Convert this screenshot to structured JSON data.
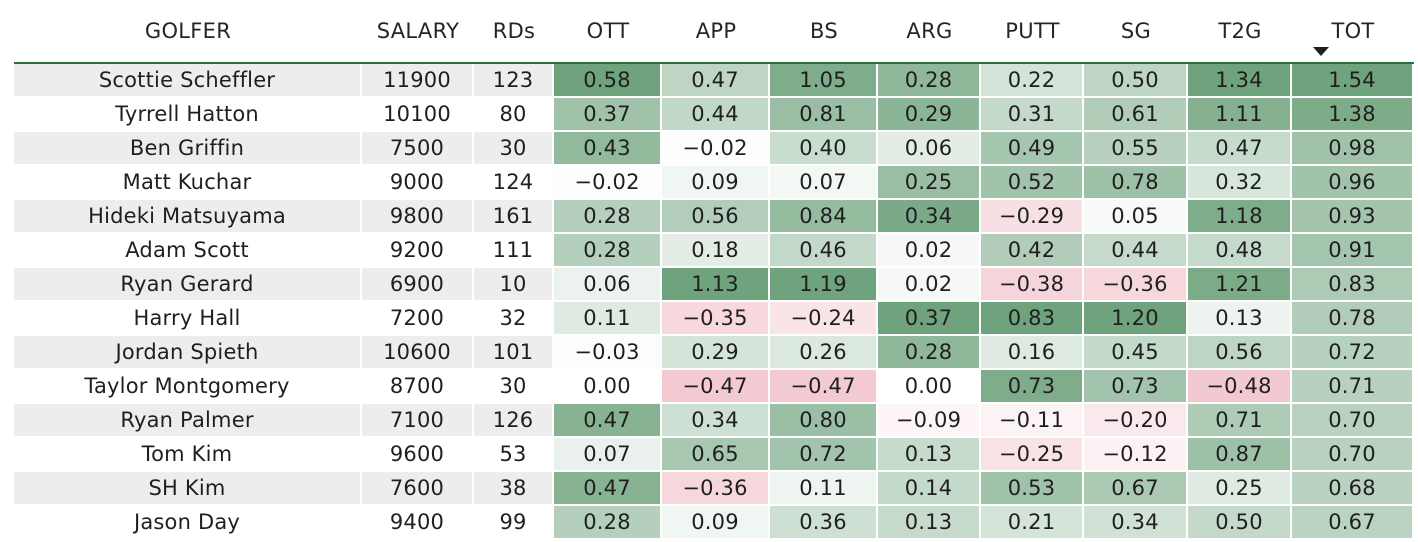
{
  "columns": [
    "GOLFER",
    "SALARY",
    "RDs",
    "OTT",
    "APP",
    "BS",
    "ARG",
    "PUTT",
    "SG",
    "T2G",
    "TOT"
  ],
  "sorted_column": "TOT",
  "sort_icon": "sort-descending-icon",
  "colors": {
    "positive": "#6fa37d",
    "negative": "#f2c7cf",
    "neutral": "#ffffff",
    "header_rule": "#2e6b3f"
  },
  "rows": [
    {
      "golfer": "Scottie Scheffler",
      "salary": "11900",
      "rds": "123",
      "ott": "0.58",
      "app": "0.47",
      "bs": "1.05",
      "arg": "0.28",
      "putt": "0.22",
      "sg": "0.50",
      "t2g": "1.34",
      "tot": "1.54"
    },
    {
      "golfer": "Tyrrell Hatton",
      "salary": "10100",
      "rds": "80",
      "ott": "0.37",
      "app": "0.44",
      "bs": "0.81",
      "arg": "0.29",
      "putt": "0.31",
      "sg": "0.61",
      "t2g": "1.11",
      "tot": "1.38"
    },
    {
      "golfer": "Ben Griffin",
      "salary": "7500",
      "rds": "30",
      "ott": "0.43",
      "app": "−0.02",
      "bs": "0.40",
      "arg": "0.06",
      "putt": "0.49",
      "sg": "0.55",
      "t2g": "0.47",
      "tot": "0.98"
    },
    {
      "golfer": "Matt Kuchar",
      "salary": "9000",
      "rds": "124",
      "ott": "−0.02",
      "app": "0.09",
      "bs": "0.07",
      "arg": "0.25",
      "putt": "0.52",
      "sg": "0.78",
      "t2g": "0.32",
      "tot": "0.96"
    },
    {
      "golfer": "Hideki Matsuyama",
      "salary": "9800",
      "rds": "161",
      "ott": "0.28",
      "app": "0.56",
      "bs": "0.84",
      "arg": "0.34",
      "putt": "−0.29",
      "sg": "0.05",
      "t2g": "1.18",
      "tot": "0.93"
    },
    {
      "golfer": "Adam Scott",
      "salary": "9200",
      "rds": "111",
      "ott": "0.28",
      "app": "0.18",
      "bs": "0.46",
      "arg": "0.02",
      "putt": "0.42",
      "sg": "0.44",
      "t2g": "0.48",
      "tot": "0.91"
    },
    {
      "golfer": "Ryan Gerard",
      "salary": "6900",
      "rds": "10",
      "ott": "0.06",
      "app": "1.13",
      "bs": "1.19",
      "arg": "0.02",
      "putt": "−0.38",
      "sg": "−0.36",
      "t2g": "1.21",
      "tot": "0.83"
    },
    {
      "golfer": "Harry Hall",
      "salary": "7200",
      "rds": "32",
      "ott": "0.11",
      "app": "−0.35",
      "bs": "−0.24",
      "arg": "0.37",
      "putt": "0.83",
      "sg": "1.20",
      "t2g": "0.13",
      "tot": "0.78"
    },
    {
      "golfer": "Jordan Spieth",
      "salary": "10600",
      "rds": "101",
      "ott": "−0.03",
      "app": "0.29",
      "bs": "0.26",
      "arg": "0.28",
      "putt": "0.16",
      "sg": "0.45",
      "t2g": "0.56",
      "tot": "0.72"
    },
    {
      "golfer": "Taylor Montgomery",
      "salary": "8700",
      "rds": "30",
      "ott": "0.00",
      "app": "−0.47",
      "bs": "−0.47",
      "arg": "0.00",
      "putt": "0.73",
      "sg": "0.73",
      "t2g": "−0.48",
      "tot": "0.71"
    },
    {
      "golfer": "Ryan Palmer",
      "salary": "7100",
      "rds": "126",
      "ott": "0.47",
      "app": "0.34",
      "bs": "0.80",
      "arg": "−0.09",
      "putt": "−0.11",
      "sg": "−0.20",
      "t2g": "0.71",
      "tot": "0.70"
    },
    {
      "golfer": "Tom Kim",
      "salary": "9600",
      "rds": "53",
      "ott": "0.07",
      "app": "0.65",
      "bs": "0.72",
      "arg": "0.13",
      "putt": "−0.25",
      "sg": "−0.12",
      "t2g": "0.87",
      "tot": "0.70"
    },
    {
      "golfer": "SH Kim",
      "salary": "7600",
      "rds": "38",
      "ott": "0.47",
      "app": "−0.36",
      "bs": "0.11",
      "arg": "0.14",
      "putt": "0.53",
      "sg": "0.67",
      "t2g": "0.25",
      "tot": "0.68"
    },
    {
      "golfer": "Jason Day",
      "salary": "9400",
      "rds": "99",
      "ott": "0.28",
      "app": "0.09",
      "bs": "0.36",
      "arg": "0.13",
      "putt": "0.21",
      "sg": "0.34",
      "t2g": "0.50",
      "tot": "0.67"
    }
  ]
}
